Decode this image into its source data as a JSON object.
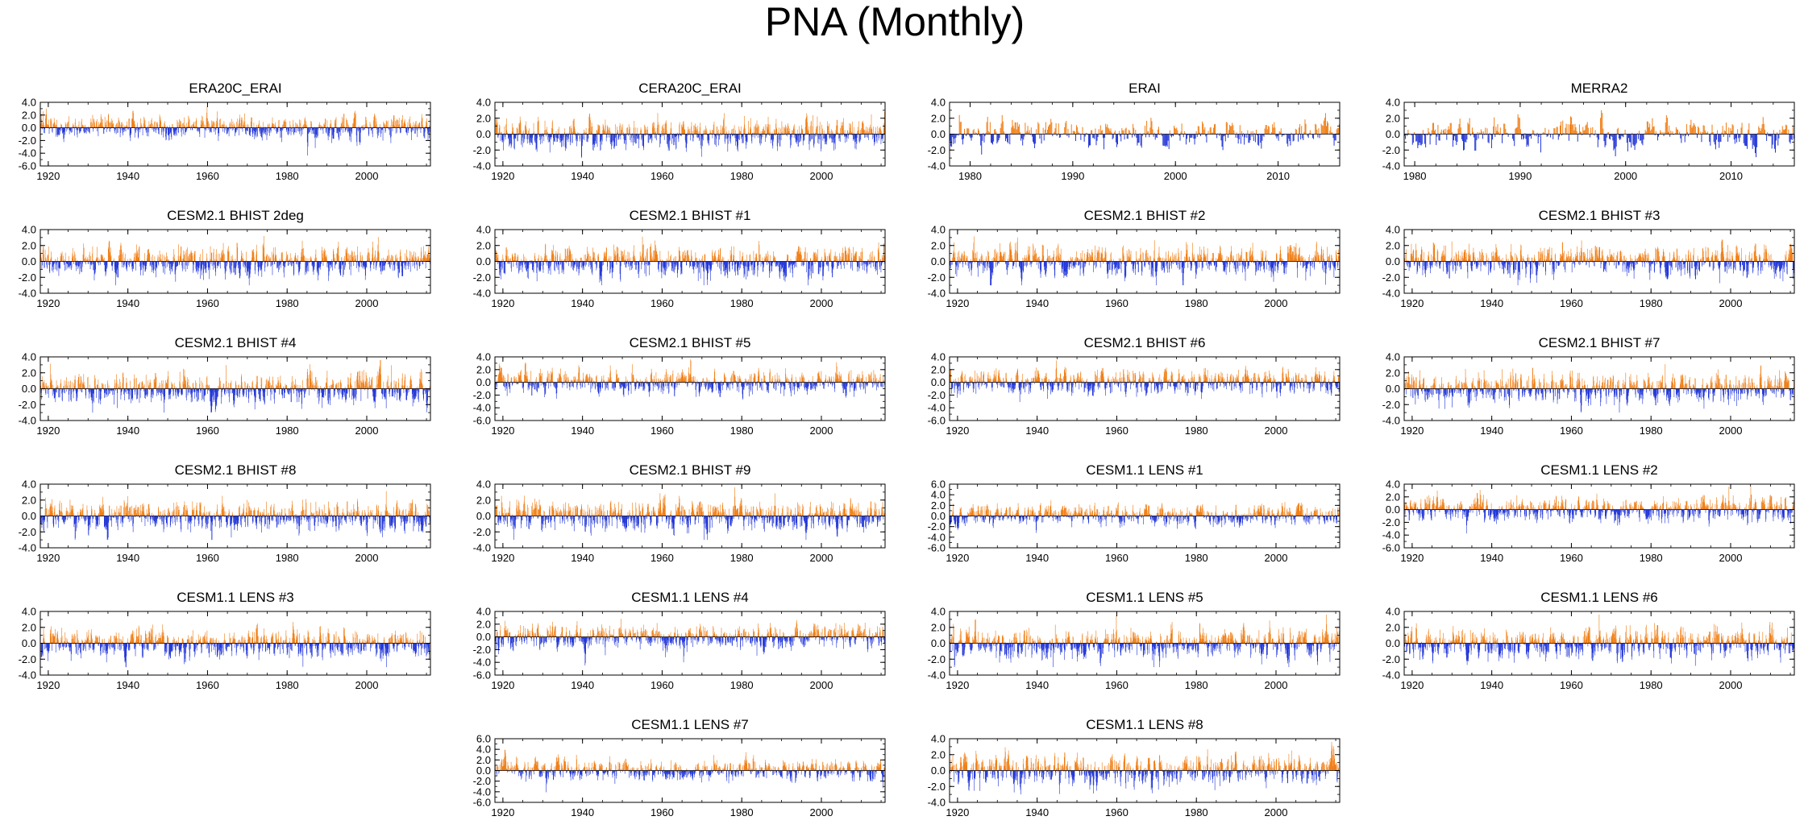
{
  "title": "PNA (Monthly)",
  "colors": {
    "positive": "#f07b0f",
    "negative": "#1e32d6",
    "axis": "#000000",
    "zero": "#000000"
  },
  "chart_data": [
    {
      "type": "bar",
      "title": "ERA20C_ERAI",
      "x_range": [
        1918,
        2016
      ],
      "xticks": [
        "1920",
        "1940",
        "1960",
        "1980",
        "2000"
      ],
      "ylim": [
        -6,
        4
      ],
      "yticks": [
        "4.0",
        "2.0",
        "0.0",
        "-2.0",
        "-4.0",
        "-6.0"
      ],
      "seed": 11
    },
    {
      "type": "bar",
      "title": "CERA20C_ERAI",
      "x_range": [
        1918,
        2016
      ],
      "xticks": [
        "1920",
        "1940",
        "1960",
        "1980",
        "2000"
      ],
      "ylim": [
        -4,
        4
      ],
      "yticks": [
        "4.0",
        "2.0",
        "0.0",
        "-2.0",
        "-4.0"
      ],
      "seed": 12
    },
    {
      "type": "bar",
      "title": "ERAI",
      "x_range": [
        1978,
        2016
      ],
      "xticks": [
        "1980",
        "1990",
        "2000",
        "2010"
      ],
      "ylim": [
        -4,
        4
      ],
      "yticks": [
        "4.0",
        "2.0",
        "0.0",
        "-2.0",
        "-4.0"
      ],
      "seed": 13
    },
    {
      "type": "bar",
      "title": "MERRA2",
      "x_range": [
        1979,
        2016
      ],
      "xticks": [
        "1980",
        "1990",
        "2000",
        "2010"
      ],
      "ylim": [
        -4,
        4
      ],
      "yticks": [
        "4.0",
        "2.0",
        "0.0",
        "-2.0",
        "-4.0"
      ],
      "seed": 14
    },
    {
      "type": "bar",
      "title": "CESM2.1 BHIST 2deg",
      "x_range": [
        1918,
        2016
      ],
      "xticks": [
        "1920",
        "1940",
        "1960",
        "1980",
        "2000"
      ],
      "ylim": [
        -4,
        4
      ],
      "yticks": [
        "4.0",
        "2.0",
        "0.0",
        "-2.0",
        "-4.0"
      ],
      "seed": 21
    },
    {
      "type": "bar",
      "title": "CESM2.1 BHIST #1",
      "x_range": [
        1918,
        2016
      ],
      "xticks": [
        "1920",
        "1940",
        "1960",
        "1980",
        "2000"
      ],
      "ylim": [
        -4,
        4
      ],
      "yticks": [
        "4.0",
        "2.0",
        "0.0",
        "-2.0",
        "-4.0"
      ],
      "seed": 22
    },
    {
      "type": "bar",
      "title": "CESM2.1 BHIST #2",
      "x_range": [
        1918,
        2016
      ],
      "xticks": [
        "1920",
        "1940",
        "1960",
        "1980",
        "2000"
      ],
      "ylim": [
        -4,
        4
      ],
      "yticks": [
        "4.0",
        "2.0",
        "0.0",
        "-2.0",
        "-4.0"
      ],
      "seed": 23
    },
    {
      "type": "bar",
      "title": "CESM2.1 BHIST #3",
      "x_range": [
        1918,
        2016
      ],
      "xticks": [
        "1920",
        "1940",
        "1960",
        "1980",
        "2000"
      ],
      "ylim": [
        -4,
        4
      ],
      "yticks": [
        "4.0",
        "2.0",
        "0.0",
        "-2.0",
        "-4.0"
      ],
      "seed": 24
    },
    {
      "type": "bar",
      "title": "CESM2.1 BHIST #4",
      "x_range": [
        1918,
        2016
      ],
      "xticks": [
        "1920",
        "1940",
        "1960",
        "1980",
        "2000"
      ],
      "ylim": [
        -4,
        4
      ],
      "yticks": [
        "4.0",
        "2.0",
        "0.0",
        "-2.0",
        "-4.0"
      ],
      "seed": 31
    },
    {
      "type": "bar",
      "title": "CESM2.1 BHIST #5",
      "x_range": [
        1918,
        2016
      ],
      "xticks": [
        "1920",
        "1940",
        "1960",
        "1980",
        "2000"
      ],
      "ylim": [
        -6,
        4
      ],
      "yticks": [
        "4.0",
        "2.0",
        "0.0",
        "-2.0",
        "-4.0",
        "-6.0"
      ],
      "seed": 32
    },
    {
      "type": "bar",
      "title": "CESM2.1 BHIST #6",
      "x_range": [
        1918,
        2016
      ],
      "xticks": [
        "1920",
        "1940",
        "1960",
        "1980",
        "2000"
      ],
      "ylim": [
        -6,
        4
      ],
      "yticks": [
        "4.0",
        "2.0",
        "0.0",
        "-2.0",
        "-4.0",
        "-6.0"
      ],
      "seed": 33
    },
    {
      "type": "bar",
      "title": "CESM2.1 BHIST #7",
      "x_range": [
        1918,
        2016
      ],
      "xticks": [
        "1920",
        "1940",
        "1960",
        "1980",
        "2000"
      ],
      "ylim": [
        -4,
        4
      ],
      "yticks": [
        "4.0",
        "2.0",
        "0.0",
        "-2.0",
        "-4.0"
      ],
      "seed": 34
    },
    {
      "type": "bar",
      "title": "CESM2.1 BHIST #8",
      "x_range": [
        1918,
        2016
      ],
      "xticks": [
        "1920",
        "1940",
        "1960",
        "1980",
        "2000"
      ],
      "ylim": [
        -4,
        4
      ],
      "yticks": [
        "4.0",
        "2.0",
        "0.0",
        "-2.0",
        "-4.0"
      ],
      "seed": 41
    },
    {
      "type": "bar",
      "title": "CESM2.1 BHIST #9",
      "x_range": [
        1918,
        2016
      ],
      "xticks": [
        "1920",
        "1940",
        "1960",
        "1980",
        "2000"
      ],
      "ylim": [
        -4,
        4
      ],
      "yticks": [
        "4.0",
        "2.0",
        "0.0",
        "-2.0",
        "-4.0"
      ],
      "seed": 42
    },
    {
      "type": "bar",
      "title": "CESM1.1 LENS #1",
      "x_range": [
        1918,
        2016
      ],
      "xticks": [
        "1920",
        "1940",
        "1960",
        "1980",
        "2000"
      ],
      "ylim": [
        -6,
        6
      ],
      "yticks": [
        "6.0",
        "4.0",
        "2.0",
        "0.0",
        "-2.0",
        "-4.0",
        "-6.0"
      ],
      "seed": 43
    },
    {
      "type": "bar",
      "title": "CESM1.1 LENS #2",
      "x_range": [
        1918,
        2016
      ],
      "xticks": [
        "1920",
        "1940",
        "1960",
        "1980",
        "2000"
      ],
      "ylim": [
        -6,
        4
      ],
      "yticks": [
        "4.0",
        "2.0",
        "0.0",
        "-2.0",
        "-4.0",
        "-6.0"
      ],
      "seed": 44
    },
    {
      "type": "bar",
      "title": "CESM1.1 LENS #3",
      "x_range": [
        1918,
        2016
      ],
      "xticks": [
        "1920",
        "1940",
        "1960",
        "1980",
        "2000"
      ],
      "ylim": [
        -4,
        4
      ],
      "yticks": [
        "4.0",
        "2.0",
        "0.0",
        "-2.0",
        "-4.0"
      ],
      "seed": 51
    },
    {
      "type": "bar",
      "title": "CESM1.1 LENS #4",
      "x_range": [
        1918,
        2016
      ],
      "xticks": [
        "1920",
        "1940",
        "1960",
        "1980",
        "2000"
      ],
      "ylim": [
        -6,
        4
      ],
      "yticks": [
        "4.0",
        "2.0",
        "0.0",
        "-2.0",
        "-4.0",
        "-6.0"
      ],
      "seed": 52
    },
    {
      "type": "bar",
      "title": "CESM1.1 LENS #5",
      "x_range": [
        1918,
        2016
      ],
      "xticks": [
        "1920",
        "1940",
        "1960",
        "1980",
        "2000"
      ],
      "ylim": [
        -4,
        4
      ],
      "yticks": [
        "4.0",
        "2.0",
        "0.0",
        "-2.0",
        "-4.0"
      ],
      "seed": 53
    },
    {
      "type": "bar",
      "title": "CESM1.1 LENS #6",
      "x_range": [
        1918,
        2016
      ],
      "xticks": [
        "1920",
        "1940",
        "1960",
        "1980",
        "2000"
      ],
      "ylim": [
        -4,
        4
      ],
      "yticks": [
        "4.0",
        "2.0",
        "0.0",
        "-2.0",
        "-4.0"
      ],
      "seed": 54
    },
    {
      "type": "bar",
      "title": "CESM1.1 LENS #7",
      "x_range": [
        1918,
        2016
      ],
      "xticks": [
        "1920",
        "1940",
        "1960",
        "1980",
        "2000"
      ],
      "ylim": [
        -6,
        6
      ],
      "yticks": [
        "6.0",
        "4.0",
        "2.0",
        "0.0",
        "-2.0",
        "-4.0",
        "-6.0"
      ],
      "seed": 61
    },
    {
      "type": "bar",
      "title": "CESM1.1 LENS #8",
      "x_range": [
        1918,
        2016
      ],
      "xticks": [
        "1920",
        "1940",
        "1960",
        "1980",
        "2000"
      ],
      "ylim": [
        -4,
        4
      ],
      "yticks": [
        "4.0",
        "2.0",
        "0.0",
        "-2.0",
        "-4.0"
      ],
      "seed": 62
    }
  ]
}
